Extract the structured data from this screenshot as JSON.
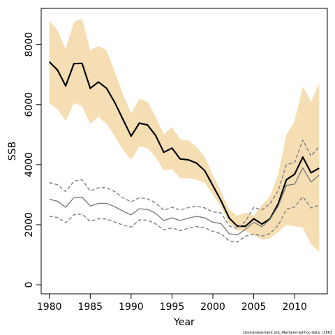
{
  "chart_data": {
    "type": "line",
    "xlabel": "Year",
    "ylabel": "SSB",
    "xlim": [
      1979,
      2014
    ],
    "ylim": [
      -300,
      9200
    ],
    "xticks": [
      1980,
      1985,
      1990,
      1995,
      2000,
      2005,
      2010
    ],
    "yticks": [
      0,
      2000,
      4000,
      6000,
      8000
    ],
    "grid": false,
    "footnote": "stockassessment.org, Mackerel-ad-hoc-data, r2663",
    "colors": {
      "band": "#f5deb3",
      "estimate": "#000000",
      "comparison": "#7f7f7f"
    },
    "x": [
      1980,
      1981,
      1982,
      1983,
      1984,
      1985,
      1986,
      1987,
      1988,
      1989,
      1990,
      1991,
      1992,
      1993,
      1994,
      1995,
      1996,
      1997,
      1998,
      1999,
      2000,
      2001,
      2002,
      2003,
      2004,
      2005,
      2006,
      2007,
      2008,
      2009,
      2010,
      2011,
      2012,
      2013
    ],
    "series": [
      {
        "style": "band",
        "lower": [
          6050,
          5850,
          5450,
          6050,
          5950,
          5350,
          5600,
          5350,
          4950,
          4500,
          4150,
          4600,
          4550,
          4250,
          3800,
          3850,
          3550,
          3550,
          3500,
          3400,
          3000,
          2600,
          2050,
          1800,
          1800,
          1650,
          1500,
          1550,
          1750,
          2000,
          1950,
          1900,
          1350,
          1100
        ],
        "upper": [
          8800,
          8450,
          7850,
          8750,
          8850,
          7800,
          7950,
          7800,
          7100,
          6350,
          5700,
          6200,
          6100,
          5600,
          5000,
          5250,
          4850,
          4800,
          4600,
          4250,
          3650,
          3100,
          2500,
          2300,
          2400,
          2300,
          2650,
          2950,
          3700,
          5000,
          5450,
          6600,
          6100,
          6700
        ]
      },
      {
        "style": "solid-black",
        "values": [
          7420,
          7150,
          6620,
          7360,
          7370,
          6540,
          6750,
          6540,
          6070,
          5510,
          4950,
          5380,
          5320,
          4970,
          4410,
          4550,
          4190,
          4160,
          4050,
          3800,
          3300,
          2800,
          2220,
          1950,
          1950,
          2200,
          2020,
          2200,
          2700,
          3500,
          3680,
          4250,
          3730,
          3880
        ]
      },
      {
        "style": "solid-gray",
        "values": [
          2850,
          2780,
          2580,
          2900,
          2920,
          2620,
          2710,
          2710,
          2600,
          2450,
          2330,
          2530,
          2510,
          2380,
          2140,
          2230,
          2140,
          2220,
          2280,
          2230,
          2080,
          2040,
          1700,
          1660,
          1850,
          2080,
          1930,
          2180,
          2620,
          3310,
          3350,
          3890,
          3420,
          3650
        ]
      },
      {
        "style": "dashed-gray",
        "values": [
          3400,
          3330,
          3100,
          3450,
          3500,
          3120,
          3230,
          3230,
          3100,
          2900,
          2760,
          2900,
          2860,
          2730,
          2480,
          2580,
          2490,
          2570,
          2620,
          2560,
          2430,
          2390,
          1960,
          1870,
          2120,
          2580,
          2490,
          2700,
          3130,
          4000,
          4070,
          4820,
          4280,
          4600
        ]
      },
      {
        "style": "dashed-gray",
        "values": [
          2280,
          2240,
          2070,
          2330,
          2360,
          2110,
          2200,
          2190,
          2090,
          1990,
          1920,
          2160,
          2150,
          2030,
          1830,
          1890,
          1800,
          1880,
          1940,
          1900,
          1780,
          1700,
          1460,
          1420,
          1620,
          1690,
          1620,
          1710,
          1980,
          2520,
          2590,
          2930,
          2560,
          2650
        ]
      }
    ]
  }
}
